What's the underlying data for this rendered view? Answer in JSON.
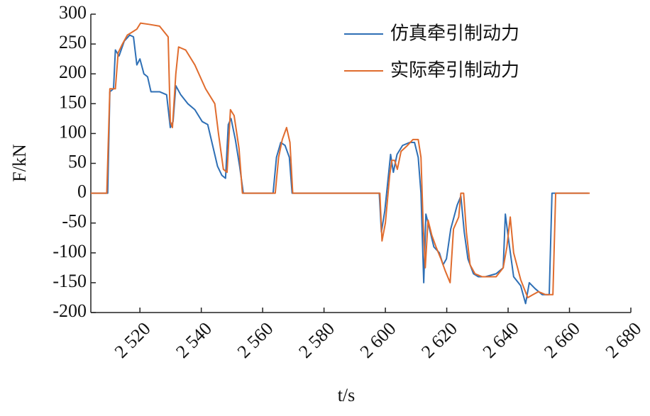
{
  "chart_data": {
    "type": "line",
    "x_label": "t/s",
    "y_label": "F/kN",
    "xlim": [
      2504,
      2680
    ],
    "ylim": [
      -200,
      300
    ],
    "xticks": [
      {
        "value": 2520,
        "label": "2 520"
      },
      {
        "value": 2540,
        "label": "2 540"
      },
      {
        "value": 2560,
        "label": "2 560"
      },
      {
        "value": 2580,
        "label": "2 580"
      },
      {
        "value": 2600,
        "label": "2 600"
      },
      {
        "value": 2620,
        "label": "2 620"
      },
      {
        "value": 2640,
        "label": "2 640"
      },
      {
        "value": 2660,
        "label": "2 660"
      },
      {
        "value": 2680,
        "label": "2 680"
      }
    ],
    "yticks": [
      -200,
      -150,
      -100,
      -50,
      0,
      50,
      100,
      150,
      200,
      250,
      300
    ],
    "grid": false,
    "legend": "upper right",
    "series": [
      {
        "name": "仿真牵引制动力",
        "color": "#2e6fb5",
        "x": [
          2504,
          2509.5,
          2510.2,
          2511.4,
          2512,
          2513.2,
          2514.9,
          2516.7,
          2517.9,
          2519,
          2520,
          2521.3,
          2522.5,
          2523.6,
          2526.4,
          2528.7,
          2529.9,
          2530.8,
          2531.7,
          2533.3,
          2535.6,
          2537.9,
          2540.3,
          2542.1,
          2543.7,
          2545.3,
          2546.7,
          2547.9,
          2548.8,
          2549.7,
          2551.1,
          2552.5,
          2553.7,
          2563.4,
          2564.5,
          2565.9,
          2567.3,
          2568.7,
          2569.6,
          2598,
          2598.7,
          2599.8,
          2601,
          2601.7,
          2602.6,
          2603.8,
          2605.6,
          2607.9,
          2609.5,
          2610.7,
          2611.6,
          2612.5,
          2613.2,
          2614.4,
          2615.8,
          2617.6,
          2618.8,
          2619.9,
          2621.3,
          2623.4,
          2624.6,
          2625.7,
          2626.9,
          2628.7,
          2630.3,
          2632.6,
          2636.1,
          2638.4,
          2639.1,
          2640.2,
          2641.8,
          2644.1,
          2645.7,
          2646.9,
          2648.8,
          2651.1,
          2653.4,
          2654.3,
          2666.1
        ],
        "values": [
          0,
          0,
          170,
          175,
          240,
          230,
          255,
          265,
          262,
          215,
          225,
          200,
          195,
          170,
          170,
          165,
          110,
          120,
          180,
          165,
          150,
          140,
          120,
          115,
          80,
          45,
          30,
          25,
          115,
          125,
          90,
          45,
          0,
          0,
          60,
          85,
          80,
          60,
          0,
          0,
          -65,
          -30,
          30,
          65,
          35,
          65,
          80,
          85,
          85,
          60,
          0,
          -150,
          -35,
          -60,
          -90,
          -100,
          -120,
          -110,
          -60,
          -20,
          -5,
          -65,
          -110,
          -135,
          -140,
          -140,
          -135,
          -125,
          -35,
          -80,
          -140,
          -155,
          -185,
          -150,
          -160,
          -170,
          -170,
          0,
          0
        ]
      },
      {
        "name": "实际牵引制动力",
        "color": "#e06c2e",
        "x": [
          2504,
          2509.2,
          2510.2,
          2512,
          2512.9,
          2514.3,
          2515.9,
          2517.5,
          2519,
          2520.2,
          2522.9,
          2526.4,
          2529.2,
          2529.9,
          2530.6,
          2531.7,
          2532.6,
          2534.9,
          2537.9,
          2541.4,
          2544.4,
          2545.6,
          2547.2,
          2548.4,
          2549.5,
          2550.7,
          2552.3,
          2553.4,
          2564.1,
          2565.2,
          2566.4,
          2567.8,
          2568.9,
          2569.8,
          2598.2,
          2598.9,
          2600,
          2601.4,
          2602.1,
          2603,
          2603.9,
          2605.1,
          2607.2,
          2609,
          2610.7,
          2611.6,
          2612.3,
          2613,
          2613.9,
          2615.1,
          2616.5,
          2618.1,
          2619.5,
          2621.1,
          2622.2,
          2623.9,
          2624.6,
          2625.5,
          2626.4,
          2627.6,
          2629.2,
          2631.5,
          2636.1,
          2638.4,
          2639.6,
          2640.7,
          2641.8,
          2644.1,
          2646.4,
          2648.1,
          2649.9,
          2652.2,
          2654.6,
          2655.5,
          2666.6
        ],
        "values": [
          0,
          0,
          175,
          175,
          235,
          250,
          265,
          270,
          275,
          285,
          283,
          280,
          262,
          120,
          110,
          200,
          245,
          240,
          215,
          175,
          150,
          100,
          40,
          35,
          140,
          130,
          75,
          0,
          0,
          60,
          90,
          110,
          85,
          0,
          0,
          -80,
          -50,
          30,
          55,
          55,
          40,
          70,
          80,
          90,
          90,
          60,
          -50,
          -125,
          -45,
          -70,
          -90,
          -110,
          -130,
          -150,
          -60,
          -40,
          0,
          0,
          -65,
          -120,
          -135,
          -140,
          -140,
          -125,
          -90,
          -40,
          -100,
          -145,
          -175,
          -170,
          -165,
          -170,
          -170,
          0,
          0
        ]
      }
    ]
  }
}
